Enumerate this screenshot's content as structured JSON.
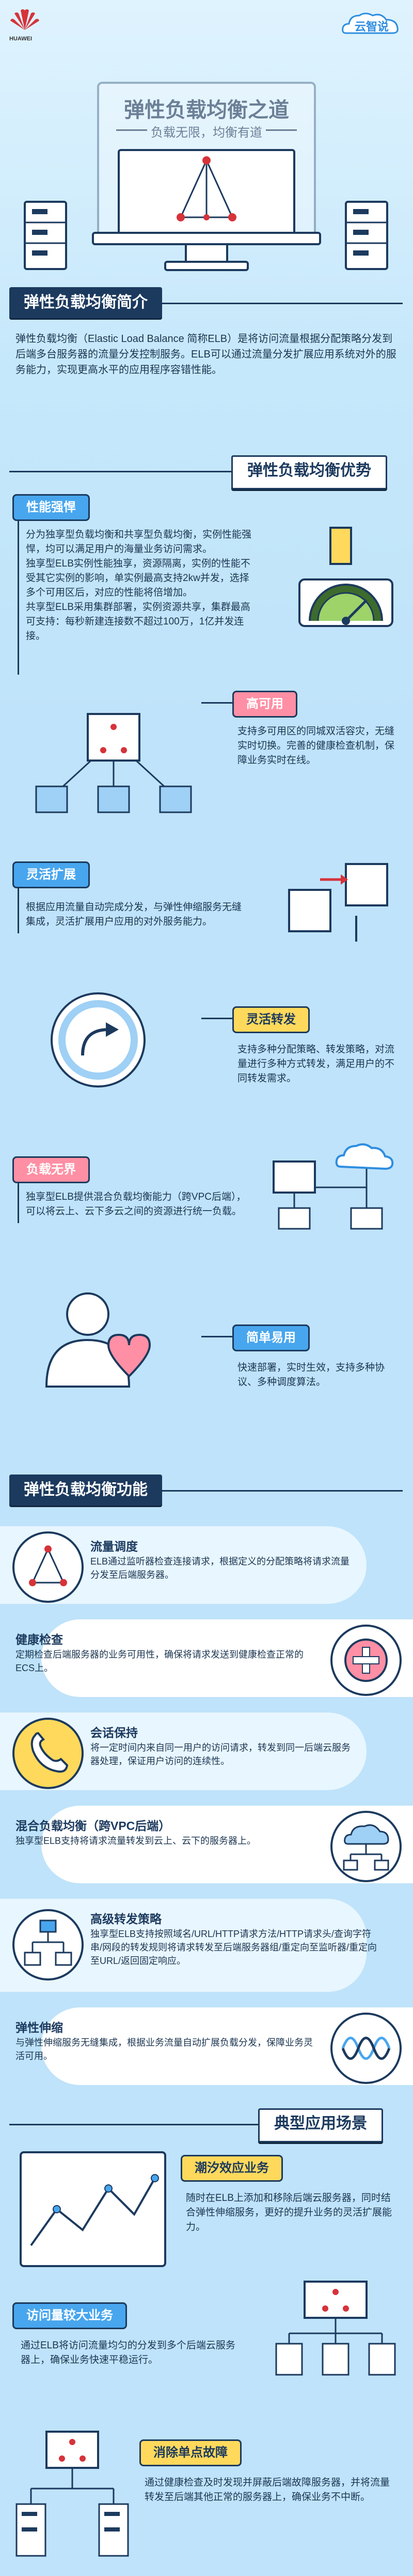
{
  "brand": {
    "logo_text": "HUAWEI",
    "cloud_tag": "云智说"
  },
  "hero": {
    "title": "弹性负载均衡之道",
    "subtitle": "负载无限，均衡有道"
  },
  "intro": {
    "title": "弹性负载均衡简介",
    "text": "弹性负载均衡（Elastic Load Balance 简称ELB）是将访问流量根据分配策略分发到后端多台服务器的流量分发控制服务。ELB可以通过流量分发扩展应用系统对外的服务能力，实现更高水平的应用程序容错性能。"
  },
  "advantages": {
    "title": "弹性负载均衡优势",
    "items": [
      {
        "label": "性能强悍",
        "text": "分为独享型负载均衡和共享型负载均衡，实例性能强悍，均可以满足用户的海量业务访问需求。\n独享型ELB实例性能独享，资源隔离，实例的性能不受其它实例的影响，单实例最高支持2kw并发，选择多个可用区后，对应的性能将倍增加。\n共享型ELB采用集群部署，实例资源共享，集群最高可支持：每秒新建连接数不超过100万，1亿并发连接。"
      },
      {
        "label": "高可用",
        "text": "支持多可用区的同城双活容灾，无缝实时切换。完善的健康检查机制，保障业务实时在线。"
      },
      {
        "label": "灵活扩展",
        "text": "根据应用流量自动完成分发，与弹性伸缩服务无缝集成，灵活扩展用户应用的对外服务能力。"
      },
      {
        "label": "灵活转发",
        "text": "支持多种分配策略、转发策略，对流量进行多种方式转发，满足用户的不同转发需求。"
      },
      {
        "label": "负载无界",
        "text": "独享型ELB提供混合负载均衡能力（跨VPC后端），可以将云上、云下多云之间的资源进行统一负载。"
      },
      {
        "label": "简单易用",
        "text": "快速部署，实时生效，支持多种协议、多种调度算法。"
      }
    ]
  },
  "functions": {
    "title": "弹性负载均衡功能",
    "items": [
      {
        "title": "流量调度",
        "text": "ELB通过监听器检查连接请求，根据定义的分配策略将请求流量分发至后端服务器。"
      },
      {
        "title": "健康检查",
        "text": "定期检查后端服务器的业务可用性，确保将请求发送到健康检查正常的ECS上。"
      },
      {
        "title": "会话保持",
        "text": "将一定时间内来自同一用户的访问请求，转发到同一后端云服务器处理，保证用户访问的连续性。"
      },
      {
        "title": "混合负载均衡（跨VPC后端）",
        "text": "独享型ELB支持将请求流量转发到云上、云下的服务器上。"
      },
      {
        "title": "高级转发策略",
        "text": "独享型ELB支持按照域名/URL/HTTP请求方法/HTTP请求头/查询字符串/网段的转发规则将请求转发至后端服务器组/重定向至监听器/重定向至URL/返回固定响应。"
      },
      {
        "title": "弹性伸缩",
        "text": "与弹性伸缩服务无缝集成，根据业务流量自动扩展负载分发，保障业务灵活可用。"
      }
    ]
  },
  "scenarios": {
    "title": "典型应用场景",
    "items": [
      {
        "label": "潮汐效应业务",
        "text": "随时在ELB上添加和移除后端云服务器，同时结合弹性伸缩服务，更好的提升业务的灵活扩展能力。"
      },
      {
        "label": "访问量较大业务",
        "text": "通过ELB将访问流量均匀的分发到多个后端云服务器上，确保业务快速平稳运行。"
      },
      {
        "label": "消除单点故障",
        "text": "通过健康检查及时发现并屏蔽后端故障服务器，并将流量转发至后端其他正常的服务器上，确保业务不中断。"
      }
    ]
  },
  "colors": {
    "navy": "#1c3a5e",
    "blue": "#48a6ee",
    "yellow": "#ffd95b",
    "pink": "#ff8fa4",
    "red": "#d6333a"
  }
}
